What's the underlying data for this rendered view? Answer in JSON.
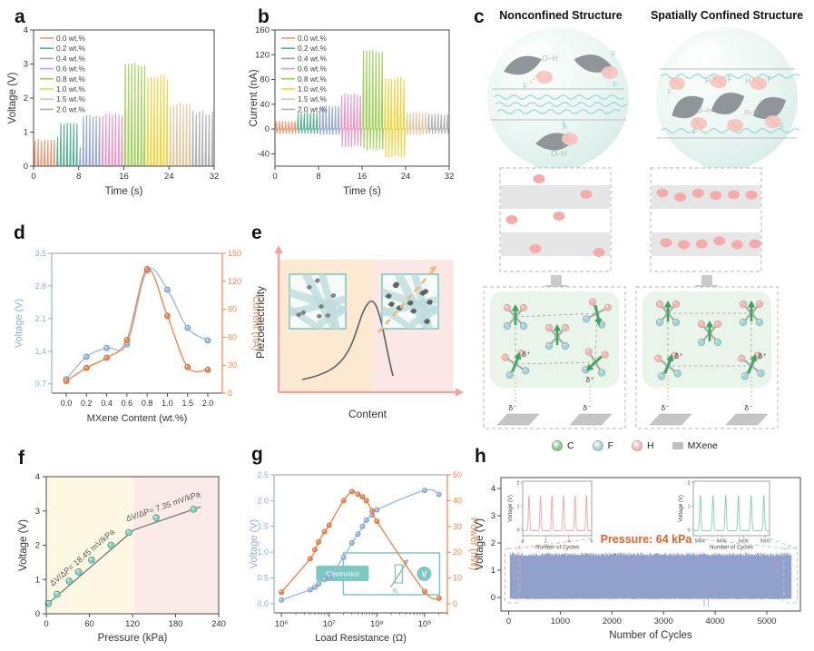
{
  "panels": {
    "a": {
      "label": "a"
    },
    "b": {
      "label": "b"
    },
    "c": {
      "label": "c",
      "left_title": "Nonconfined Structure",
      "right_title": "Spatially Confined Structure",
      "oh_label": "O–H",
      "h_label": "H",
      "f_label": "F",
      "delta_plus": "δ⁺",
      "delta_minus": "δ⁻",
      "legend": [
        {
          "name": "C",
          "color": "#8CC98F"
        },
        {
          "name": "F",
          "color": "#A7D2D6"
        },
        {
          "name": "H",
          "color": "#EDB9B7"
        },
        {
          "name": "MXene",
          "color": "#BCC0C1"
        }
      ]
    },
    "d": {
      "label": "d"
    },
    "e": {
      "label": "e"
    },
    "f": {
      "label": "f"
    },
    "g": {
      "label": "g"
    },
    "h": {
      "label": "h"
    }
  },
  "chart_data": [
    {
      "id": "a",
      "type": "line",
      "subtype": "pulse_train",
      "xlabel": "Time (s)",
      "ylabel": "Voltage (V)",
      "xlim": [
        0,
        32
      ],
      "ylim": [
        0,
        4
      ],
      "xticks": [
        0,
        8,
        16,
        24,
        32
      ],
      "yticks": [
        0,
        1,
        2,
        3,
        4
      ],
      "legend_position": "top-left",
      "series": [
        {
          "name": "0.0 wt.%",
          "color": "#F2946B",
          "t0": 0,
          "t1": 4,
          "peak": 0.8,
          "neg": 0,
          "pulses": 7
        },
        {
          "name": "0.2 wt.%",
          "color": "#54B291",
          "t0": 4,
          "t1": 8,
          "peak": 1.3,
          "neg": 0,
          "pulses": 7,
          "first_scale": 0.68
        },
        {
          "name": "0.4 wt.%",
          "color": "#93A5DA",
          "t0": 8,
          "t1": 12,
          "peak": 1.5,
          "neg": 0,
          "pulses": 7,
          "first_scale": 0.4
        },
        {
          "name": "0.6 wt.%",
          "color": "#EF93C4",
          "t0": 12,
          "t1": 16,
          "peak": 1.57,
          "neg": 0,
          "pulses": 7
        },
        {
          "name": "0.8 wt.%",
          "color": "#9ED253",
          "t0": 16,
          "t1": 20,
          "peak": 3.15,
          "neg": 0,
          "pulses": 7
        },
        {
          "name": "1.0 wt.%",
          "color": "#F5D334",
          "t0": 20,
          "t1": 24,
          "peak": 2.72,
          "neg": 0,
          "pulses": 7
        },
        {
          "name": "1.5 wt.%",
          "color": "#E2C69E",
          "t0": 24,
          "t1": 28,
          "peak": 1.88,
          "neg": 0,
          "pulses": 7
        },
        {
          "name": "2.0 wt.%",
          "color": "#AFAFAF",
          "t0": 28,
          "t1": 32,
          "peak": 1.63,
          "neg": 0,
          "pulses": 7
        }
      ]
    },
    {
      "id": "b",
      "type": "line",
      "subtype": "pulse_train",
      "xlabel": "Time (s)",
      "ylabel": "Current (nA)",
      "xlim": [
        0,
        32
      ],
      "ylim": [
        -60,
        160
      ],
      "xticks": [
        0,
        8,
        16,
        24,
        32
      ],
      "yticks": [
        -40,
        0,
        40,
        80,
        120,
        160
      ],
      "legend_position": "top-left",
      "series": [
        {
          "name": "0.0 wt.%",
          "color": "#F2946B",
          "t0": 0,
          "t1": 4,
          "peak": 13,
          "neg": -8,
          "pulses": 7
        },
        {
          "name": "0.2 wt.%",
          "color": "#54B291",
          "t0": 4,
          "t1": 8,
          "peak": 27,
          "neg": -8,
          "pulses": 7
        },
        {
          "name": "0.4 wt.%",
          "color": "#93A5DA",
          "t0": 8,
          "t1": 12,
          "peak": 38,
          "neg": -10,
          "pulses": 7
        },
        {
          "name": "0.6 wt.%",
          "color": "#EF93C4",
          "t0": 12,
          "t1": 16,
          "peak": 58,
          "neg": -30,
          "pulses": 7
        },
        {
          "name": "0.8 wt.%",
          "color": "#9ED253",
          "t0": 16,
          "t1": 20,
          "peak": 133,
          "neg": -35,
          "pulses": 7
        },
        {
          "name": "1.0 wt.%",
          "color": "#F5D334",
          "t0": 20,
          "t1": 24,
          "peak": 85,
          "neg": -47,
          "pulses": 7
        },
        {
          "name": "1.5 wt.%",
          "color": "#E2C69E",
          "t0": 24,
          "t1": 28,
          "peak": 28,
          "neg": -10,
          "pulses": 7
        },
        {
          "name": "2.0 wt.%",
          "color": "#AFAFAF",
          "t0": 28,
          "t1": 32,
          "peak": 25,
          "neg": -8,
          "pulses": 7
        }
      ]
    },
    {
      "id": "d",
      "type": "line",
      "xlabel": "MXene Content (wt.%)",
      "categories": [
        "0.0",
        "0.2",
        "0.4",
        "0.6",
        "0.8",
        "1.0",
        "1.5",
        "2.0"
      ],
      "left_axis": {
        "label": "Voltage (V)",
        "color": "#8FB0DC",
        "lim": [
          0.5,
          3.5
        ],
        "ticks": [
          0.7,
          1.4,
          2.1,
          2.8,
          3.5
        ]
      },
      "right_axis": {
        "label": "Current (nA)",
        "color": "#F0874C",
        "lim": [
          0,
          150
        ],
        "ticks": [
          0,
          30,
          60,
          90,
          120,
          150
        ]
      },
      "series": [
        {
          "name": "Voltage",
          "axis": "left",
          "color": "#9DBBE3",
          "edge": "#6E94C8",
          "values": [
            0.8,
            1.28,
            1.47,
            1.55,
            3.13,
            2.72,
            1.9,
            1.63
          ]
        },
        {
          "name": "Current",
          "axis": "right",
          "color": "#F0874C",
          "edge": "#D2693A",
          "values": [
            13,
            27,
            38,
            57,
            133,
            83,
            28,
            25
          ]
        }
      ]
    },
    {
      "id": "e",
      "type": "schematic",
      "xlabel": "Content",
      "ylabel": "Piezoelectricity",
      "axis_color": "#F2A29B",
      "curve_color": "#5F5F5F",
      "regions": [
        {
          "color": "#FBE9D2"
        },
        {
          "color": "#FBE8E5"
        }
      ],
      "inset_border": "#5BB8B4",
      "percolation_line_color": "#F0B87E"
    },
    {
      "id": "f",
      "type": "scatter",
      "xlabel": "Pressure (kPa)",
      "ylabel": "Voltage (V)",
      "xlim": [
        0,
        240
      ],
      "ylim": [
        0,
        4
      ],
      "xticks": [
        0,
        60,
        120,
        180,
        240
      ],
      "yticks": [
        0,
        1,
        2,
        3,
        4
      ],
      "regions": [
        {
          "x0": 0,
          "x1": 122,
          "color": "#FCF8E3"
        },
        {
          "x0": 122,
          "x1": 240,
          "color": "#FAEBE6"
        }
      ],
      "points": [
        [
          3,
          0.3
        ],
        [
          15,
          0.57
        ],
        [
          32,
          0.95
        ],
        [
          45,
          1.22
        ],
        [
          63,
          1.57
        ],
        [
          90,
          2.0
        ],
        [
          115,
          2.37
        ],
        [
          153,
          2.8
        ],
        [
          205,
          3.05
        ]
      ],
      "point_color": "#8FD0BC",
      "point_edge": "#58AA92",
      "line_color": "#6E6E6E",
      "fit_lines": [
        {
          "x0": 1,
          "y0": 0.27,
          "x1": 122,
          "y1": 2.45,
          "label": "ΔV/ΔP= 18.45 mV/kPa"
        },
        {
          "x0": 122,
          "y0": 2.45,
          "x1": 215,
          "y1": 3.12,
          "label": "ΔV/ΔP= 7.35 mV/kPa"
        }
      ]
    },
    {
      "id": "g",
      "type": "line",
      "xscale": "log",
      "xlabel": "Load Resistance (Ω)",
      "xlim": [
        700000,
        3000000000
      ],
      "xticks": [
        1000000,
        10000000,
        100000000,
        1000000000
      ],
      "xtick_labels": [
        "10⁶",
        "10⁷",
        "10⁸",
        "10⁹"
      ],
      "left_axis": {
        "label": "Voltage (V)",
        "color": "#8FB0DC",
        "lim": [
          -0.18,
          2.5
        ],
        "ticks": [
          0.0,
          0.5,
          1.0,
          1.5,
          2.0,
          2.5
        ]
      },
      "right_axis": {
        "label": "Power (nW)",
        "color": "#F0874C",
        "lim": [
          -3.5,
          50
        ],
        "ticks": [
          0,
          10,
          20,
          30,
          40,
          50
        ]
      },
      "x": [
        1000000,
        4000000,
        5000000,
        6000000,
        8000000,
        10000000,
        20000000,
        30000000,
        40000000,
        50000000,
        60000000,
        80000000,
        100000000,
        1000000000,
        2000000000
      ],
      "series": [
        {
          "name": "Voltage",
          "axis": "left",
          "color": "#9DBBE3",
          "edge": "#6E94C8",
          "values": [
            0.07,
            0.27,
            0.32,
            0.38,
            0.47,
            0.53,
            0.9,
            1.18,
            1.35,
            1.5,
            1.62,
            1.72,
            1.82,
            2.2,
            2.12
          ]
        },
        {
          "name": "Power",
          "axis": "right",
          "color": "#F0874C",
          "edge": "#D2693A",
          "values": [
            4.5,
            17.5,
            21,
            24,
            28,
            30.5,
            40,
            43.5,
            42.5,
            41.5,
            40,
            36,
            32,
            4.8,
            2.2
          ]
        }
      ],
      "inset": {
        "electronics_label": "Electronics",
        "resistor_label": "R",
        "resistor_sub": "L",
        "voltmeter_label": "V",
        "color": "#7CC8C2"
      }
    },
    {
      "id": "h",
      "type": "area",
      "subtype": "cycling",
      "xlabel": "Number of Cycles",
      "ylabel": "Voltage (V)",
      "xlim": [
        -150,
        5650
      ],
      "ylim": [
        -0.5,
        4.4
      ],
      "xticks": [
        0,
        1000,
        2000,
        3000,
        4000,
        5000
      ],
      "yticks": [
        0,
        1,
        2,
        3,
        4
      ],
      "band": {
        "x0": 30,
        "x1": 5470,
        "ymin": -0.04,
        "ymax_base": 1.52,
        "color": "#8C9CC8"
      },
      "annotation": {
        "text": "Pressure: 64 kPa",
        "color": "#E8612C"
      },
      "insets": [
        {
          "side": "left",
          "color": "#F2A3A3",
          "xlabel": "Number of Cycles",
          "ylabel": "Voltage (V)",
          "xlim": [
            0,
            6
          ],
          "ylim": [
            -0.25,
            2.05
          ],
          "xticks": [
            0,
            2,
            4,
            6
          ],
          "yticks": [
            0,
            1,
            2
          ],
          "peaks": 6,
          "peak_height": 1.5
        },
        {
          "side": "right",
          "color": "#85CFAF",
          "xlabel": "Number of Cycles",
          "ylabel": "Voltage (V)",
          "xlim": [
            5493.4,
            5500.4
          ],
          "ylim": [
            -0.25,
            2.05
          ],
          "xticks": [
            5494,
            5496,
            5498,
            5500
          ],
          "yticks": [
            0,
            1,
            2
          ],
          "peaks": 6,
          "peak_height": 1.5
        }
      ]
    }
  ]
}
